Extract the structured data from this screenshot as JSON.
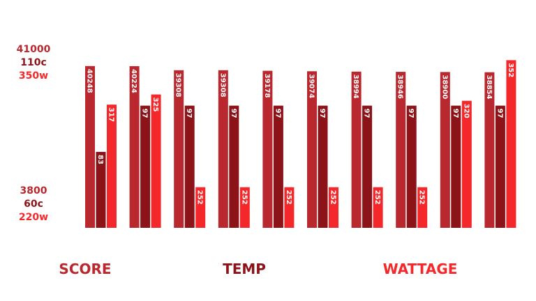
{
  "chart_data": {
    "type": "bar",
    "series": [
      {
        "name": "SCORE",
        "color": "#b8282e",
        "values": [
          40248,
          40224,
          39308,
          39308,
          39178,
          39074,
          38994,
          38946,
          38900,
          38854
        ],
        "ylim": [
          3800,
          41000
        ],
        "yticks": [
          3800,
          41000
        ]
      },
      {
        "name": "TEMP",
        "color": "#8c1419",
        "values": [
          83,
          97,
          97,
          97,
          97,
          97,
          97,
          97,
          97,
          97
        ],
        "ylim": [
          60,
          110
        ],
        "yticks": [
          {
            "value": 60,
            "label": "60c"
          },
          {
            "value": 110,
            "label": "110c"
          }
        ]
      },
      {
        "name": "WATTAGE",
        "color": "#f4282a",
        "values": [
          317,
          325,
          252,
          252,
          252,
          252,
          252,
          252,
          320,
          352
        ],
        "ylim": [
          220,
          350
        ],
        "yticks": [
          {
            "value": 220,
            "label": "220w"
          },
          {
            "value": 350,
            "label": "350w"
          }
        ]
      }
    ]
  }
}
